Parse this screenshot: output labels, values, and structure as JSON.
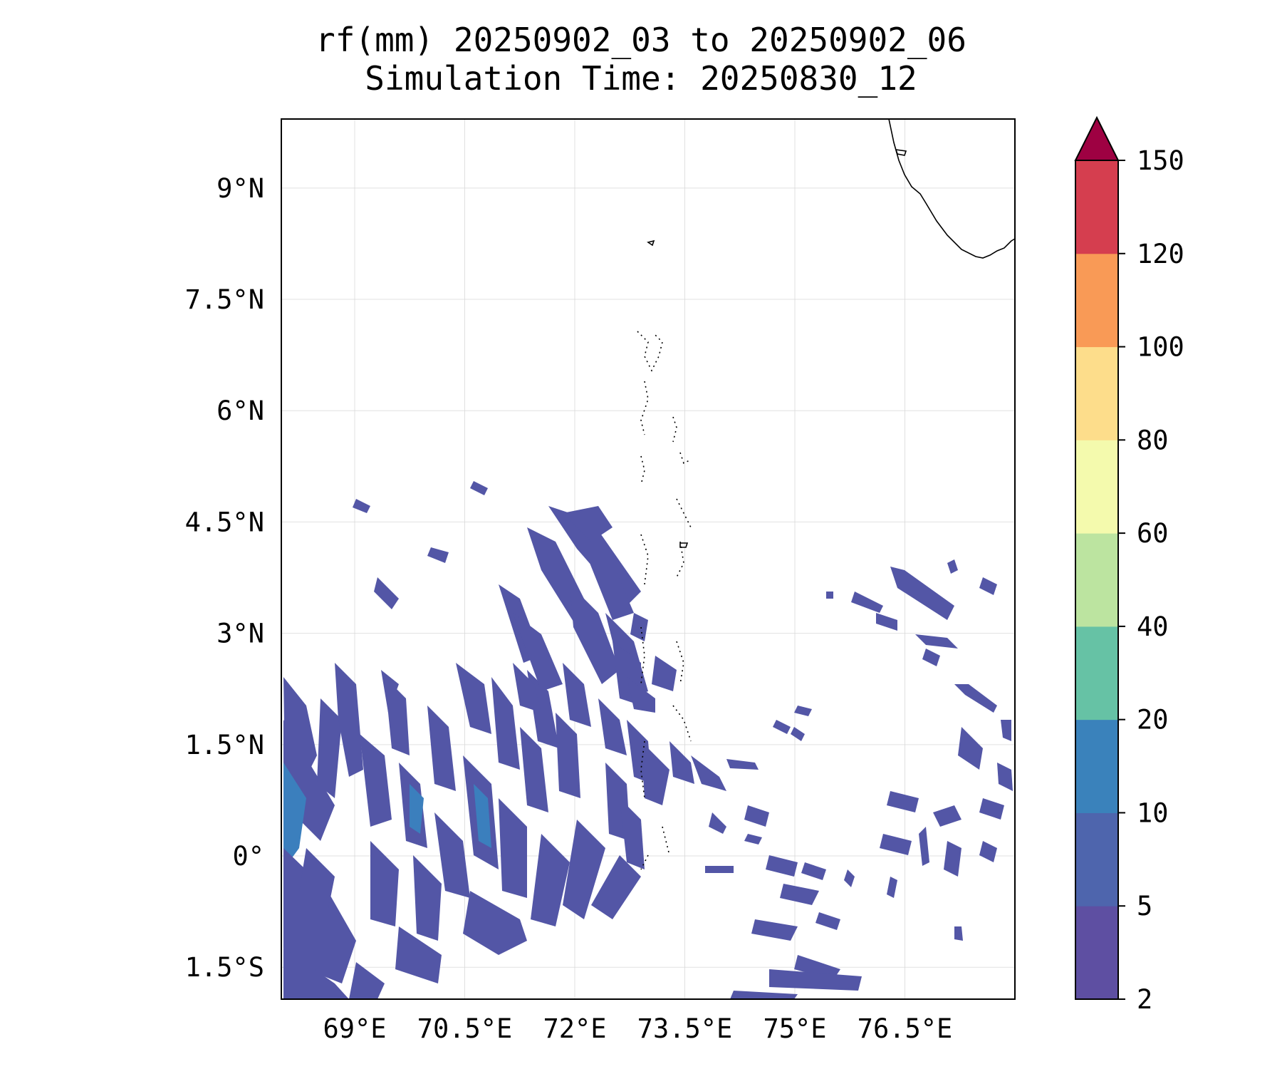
{
  "title": {
    "line1": "rf(mm) 20250902_03 to 20250902_06",
    "line2": "Simulation Time: 20250830_12"
  },
  "map": {
    "lon_range": [
      68.0,
      78.0
    ],
    "lat_range": [
      -1.93,
      9.93
    ],
    "gridlines": true
  },
  "axes": {
    "lon_ticks": [
      {
        "value": 69.0,
        "label": "69°E"
      },
      {
        "value": 70.5,
        "label": "70.5°E"
      },
      {
        "value": 72.0,
        "label": "72°E"
      },
      {
        "value": 73.5,
        "label": "73.5°E"
      },
      {
        "value": 75.0,
        "label": "75°E"
      },
      {
        "value": 76.5,
        "label": "76.5°E"
      }
    ],
    "lat_ticks": [
      {
        "value": 9.0,
        "label": "9°N"
      },
      {
        "value": 7.5,
        "label": "7.5°N"
      },
      {
        "value": 6.0,
        "label": "6°N"
      },
      {
        "value": 4.5,
        "label": "4.5°N"
      },
      {
        "value": 3.0,
        "label": "3°N"
      },
      {
        "value": 1.5,
        "label": "1.5°N"
      },
      {
        "value": 0.0,
        "label": "0°"
      },
      {
        "value": -1.5,
        "label": "1.5°S"
      }
    ]
  },
  "colorbar": {
    "levels": [
      "2",
      "5",
      "10",
      "20",
      "40",
      "60",
      "80",
      "100",
      "120",
      "150"
    ],
    "colors": [
      "#5e4fa2",
      "#4e65ad",
      "#3a82bb",
      "#66c2a5",
      "#bce4a0",
      "#f4faad",
      "#fddd8b",
      "#f99a56",
      "#d53e4f"
    ],
    "extend_color": "#9e0142",
    "extend": "max"
  },
  "chart_data": {
    "type": "heatmap",
    "title": "rf(mm) 20250902_03 to 20250902_06\nSimulation Time: 20250830_12",
    "variable": "rf(mm)",
    "x_range": [
      68.0,
      78.0
    ],
    "y_range": [
      -1.93,
      9.93
    ],
    "colorbar_levels": [
      2,
      5,
      10,
      20,
      40,
      60,
      80,
      100,
      120,
      150
    ],
    "rain_regions": [
      {
        "region": "southwest (68-72.5°E, 2.5°N-1.9°S)",
        "range_mm": [
          2,
          20
        ]
      },
      {
        "region": "central band (72-73.2°E, 2-4.5°N)",
        "range_mm": [
          2,
          10
        ]
      },
      {
        "region": "east (74-78°E, 0.5°S-4°N)",
        "range_mm": [
          2,
          10
        ]
      }
    ]
  }
}
